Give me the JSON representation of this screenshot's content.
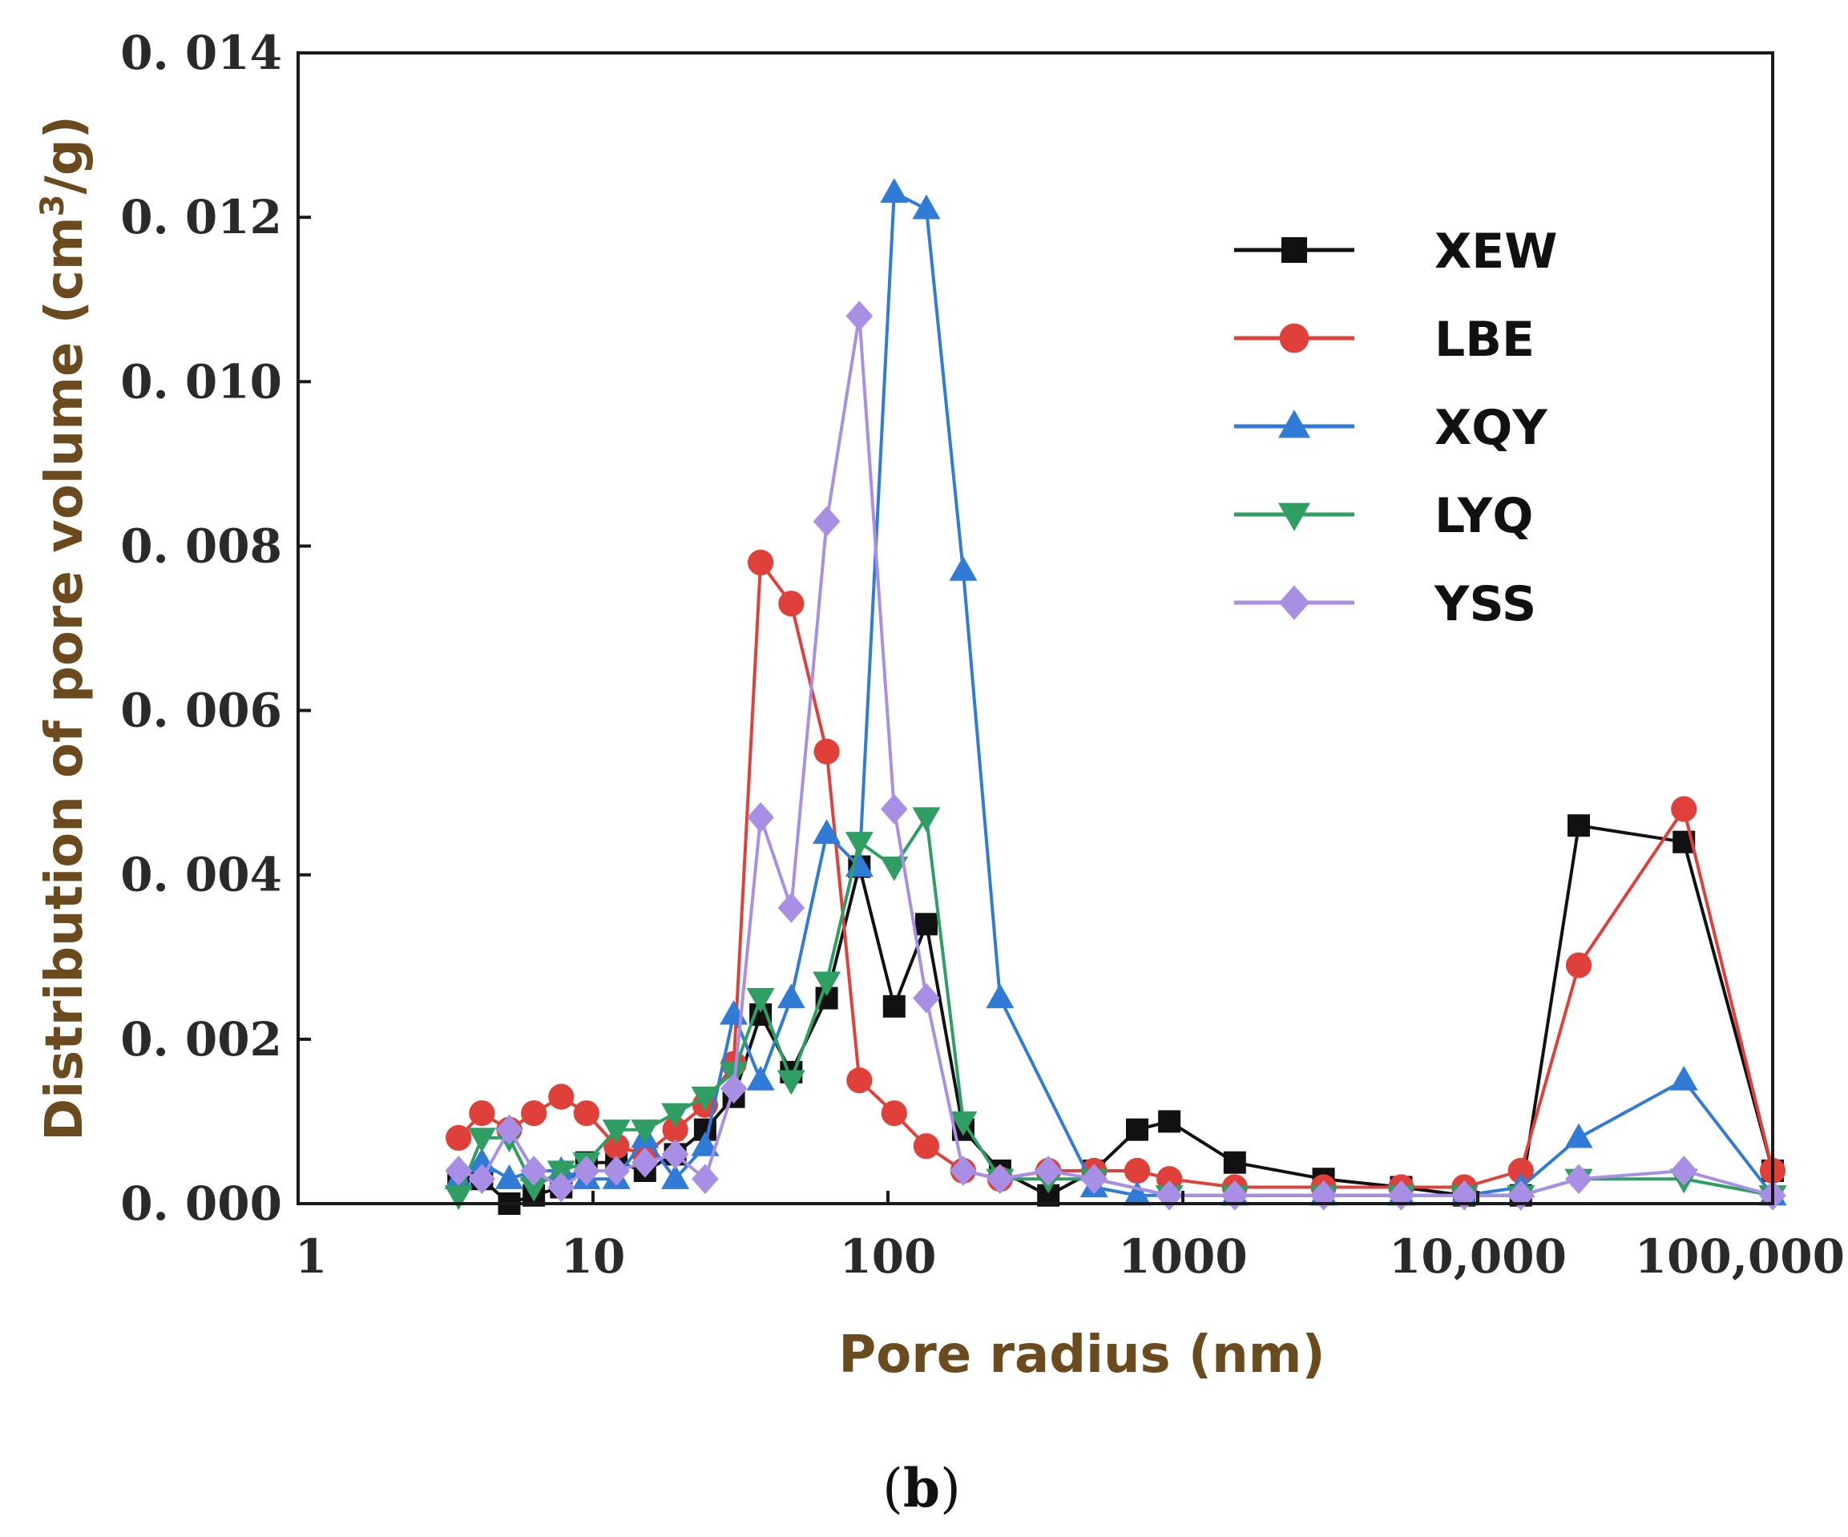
{
  "chart_data": {
    "type": "line",
    "title": "",
    "xlabel": "Pore radius (nm)",
    "ylabel": "Distribution of pore volume (cm³/g)",
    "ylabel_parts": {
      "main": "Distribution of pore volume (cm",
      "sup": "3",
      "tail": "/g)"
    },
    "x_scale": "log",
    "xlim": [
      1,
      100000
    ],
    "ylim": [
      0,
      0.014
    ],
    "x_ticks": [
      {
        "value": 1,
        "label": "1"
      },
      {
        "value": 10,
        "label": "10"
      },
      {
        "value": 100,
        "label": "100"
      },
      {
        "value": 1000,
        "label": "1000"
      },
      {
        "value": 10000,
        "label": "10,000"
      },
      {
        "value": 100000,
        "label": "100,000"
      }
    ],
    "y_ticks": [
      {
        "value": 0,
        "label": "0. 000"
      },
      {
        "value": 0.002,
        "label": "0. 002"
      },
      {
        "value": 0.004,
        "label": "0. 004"
      },
      {
        "value": 0.006,
        "label": "0. 006"
      },
      {
        "value": 0.008,
        "label": "0. 008"
      },
      {
        "value": 0.01,
        "label": "0. 010"
      },
      {
        "value": 0.012,
        "label": "0. 012"
      },
      {
        "value": 0.014,
        "label": "0. 014"
      }
    ],
    "grid": false,
    "legend_position": "top-right",
    "series": [
      {
        "name": "XEW",
        "color": "#111111",
        "marker": "square",
        "points": [
          [
            3.5,
            0.0003
          ],
          [
            4.2,
            0.0003
          ],
          [
            5.2,
            0.0
          ],
          [
            6.3,
            0.0001
          ],
          [
            7.8,
            0.0002
          ],
          [
            9.5,
            0.0005
          ],
          [
            12,
            0.0005
          ],
          [
            15,
            0.0004
          ],
          [
            19,
            0.0006
          ],
          [
            24,
            0.0009
          ],
          [
            30,
            0.0013
          ],
          [
            37,
            0.0023
          ],
          [
            47,
            0.0016
          ],
          [
            62,
            0.0025
          ],
          [
            80,
            0.0041
          ],
          [
            105,
            0.0024
          ],
          [
            135,
            0.0034
          ],
          [
            180,
            0.0009
          ],
          [
            240,
            0.0004
          ],
          [
            350,
            0.0001
          ],
          [
            500,
            0.0004
          ],
          [
            700,
            0.0009
          ],
          [
            900,
            0.001
          ],
          [
            1500,
            0.0005
          ],
          [
            3000,
            0.0003
          ],
          [
            5500,
            0.0002
          ],
          [
            9000,
            0.0001
          ],
          [
            14000,
            0.0001
          ],
          [
            22000,
            0.0046
          ],
          [
            50000,
            0.0044
          ],
          [
            100000,
            0.0004
          ]
        ]
      },
      {
        "name": "LBE",
        "color": "#e0403a",
        "marker": "circle",
        "points": [
          [
            3.5,
            0.0008
          ],
          [
            4.2,
            0.0011
          ],
          [
            5.2,
            0.0009
          ],
          [
            6.3,
            0.0011
          ],
          [
            7.8,
            0.0013
          ],
          [
            9.5,
            0.0011
          ],
          [
            12,
            0.0007
          ],
          [
            15,
            0.0006
          ],
          [
            19,
            0.0009
          ],
          [
            24,
            0.0012
          ],
          [
            30,
            0.0017
          ],
          [
            37,
            0.0078
          ],
          [
            47,
            0.0073
          ],
          [
            62,
            0.0055
          ],
          [
            80,
            0.0015
          ],
          [
            105,
            0.0011
          ],
          [
            135,
            0.0007
          ],
          [
            180,
            0.0004
          ],
          [
            240,
            0.0003
          ],
          [
            350,
            0.0004
          ],
          [
            500,
            0.0004
          ],
          [
            700,
            0.0004
          ],
          [
            900,
            0.0003
          ],
          [
            1500,
            0.0002
          ],
          [
            3000,
            0.0002
          ],
          [
            5500,
            0.0002
          ],
          [
            9000,
            0.0002
          ],
          [
            14000,
            0.0004
          ],
          [
            22000,
            0.0029
          ],
          [
            50000,
            0.0048
          ],
          [
            100000,
            0.0004
          ]
        ]
      },
      {
        "name": "XQY",
        "color": "#2f7bd6",
        "marker": "triangle-up",
        "points": [
          [
            3.5,
            0.0003
          ],
          [
            4.2,
            0.0005
          ],
          [
            5.2,
            0.0003
          ],
          [
            6.3,
            0.0004
          ],
          [
            7.8,
            0.0004
          ],
          [
            9.5,
            0.0003
          ],
          [
            12,
            0.0003
          ],
          [
            15,
            0.0008
          ],
          [
            19,
            0.0003
          ],
          [
            24,
            0.0007
          ],
          [
            30,
            0.0023
          ],
          [
            37,
            0.0015
          ],
          [
            47,
            0.0025
          ],
          [
            62,
            0.0045
          ],
          [
            80,
            0.0041
          ],
          [
            105,
            0.0123
          ],
          [
            135,
            0.0121
          ],
          [
            180,
            0.0077
          ],
          [
            240,
            0.0025
          ],
          [
            500,
            0.0002
          ],
          [
            700,
            0.0001
          ],
          [
            1500,
            0.0001
          ],
          [
            3000,
            0.0001
          ],
          [
            5500,
            0.0001
          ],
          [
            9000,
            0.0001
          ],
          [
            14000,
            0.0002
          ],
          [
            22000,
            0.0008
          ],
          [
            50000,
            0.0015
          ],
          [
            100000,
            0.0001
          ]
        ]
      },
      {
        "name": "LYQ",
        "color": "#2e9e63",
        "marker": "triangle-down",
        "points": [
          [
            3.5,
            0.0001
          ],
          [
            4.2,
            0.0008
          ],
          [
            5.2,
            0.0008
          ],
          [
            6.3,
            0.0002
          ],
          [
            7.8,
            0.0004
          ],
          [
            9.5,
            0.0005
          ],
          [
            12,
            0.0009
          ],
          [
            15,
            0.0009
          ],
          [
            19,
            0.0011
          ],
          [
            24,
            0.0013
          ],
          [
            30,
            0.0016
          ],
          [
            37,
            0.0025
          ],
          [
            47,
            0.0015
          ],
          [
            62,
            0.0027
          ],
          [
            80,
            0.0044
          ],
          [
            105,
            0.0041
          ],
          [
            135,
            0.0047
          ],
          [
            180,
            0.001
          ],
          [
            240,
            0.0003
          ],
          [
            350,
            0.0003
          ],
          [
            500,
            0.0003
          ],
          [
            900,
            0.0001
          ],
          [
            1500,
            0.0001
          ],
          [
            3000,
            0.0001
          ],
          [
            5500,
            0.0001
          ],
          [
            9000,
            0.0001
          ],
          [
            14000,
            0.0001
          ],
          [
            22000,
            0.0003
          ],
          [
            50000,
            0.0003
          ],
          [
            100000,
            0.0001
          ]
        ]
      },
      {
        "name": "YSS",
        "color": "#a98ee6",
        "marker": "diamond",
        "points": [
          [
            3.5,
            0.0004
          ],
          [
            4.2,
            0.0003
          ],
          [
            5.2,
            0.0009
          ],
          [
            6.3,
            0.0004
          ],
          [
            7.8,
            0.0002
          ],
          [
            9.5,
            0.0004
          ],
          [
            12,
            0.0004
          ],
          [
            15,
            0.0005
          ],
          [
            19,
            0.0006
          ],
          [
            24,
            0.0003
          ],
          [
            30,
            0.0014
          ],
          [
            37,
            0.0047
          ],
          [
            47,
            0.0036
          ],
          [
            62,
            0.0083
          ],
          [
            80,
            0.0108
          ],
          [
            105,
            0.0048
          ],
          [
            135,
            0.0025
          ],
          [
            180,
            0.0004
          ],
          [
            240,
            0.0003
          ],
          [
            350,
            0.0004
          ],
          [
            500,
            0.0003
          ],
          [
            900,
            0.0001
          ],
          [
            1500,
            0.0001
          ],
          [
            3000,
            0.0001
          ],
          [
            5500,
            0.0001
          ],
          [
            9000,
            0.0001
          ],
          [
            14000,
            0.0001
          ],
          [
            22000,
            0.0003
          ],
          [
            50000,
            0.0004
          ],
          [
            100000,
            0.0001
          ]
        ]
      }
    ]
  },
  "caption": {
    "open": "(",
    "letter": "b",
    "close": ")"
  }
}
